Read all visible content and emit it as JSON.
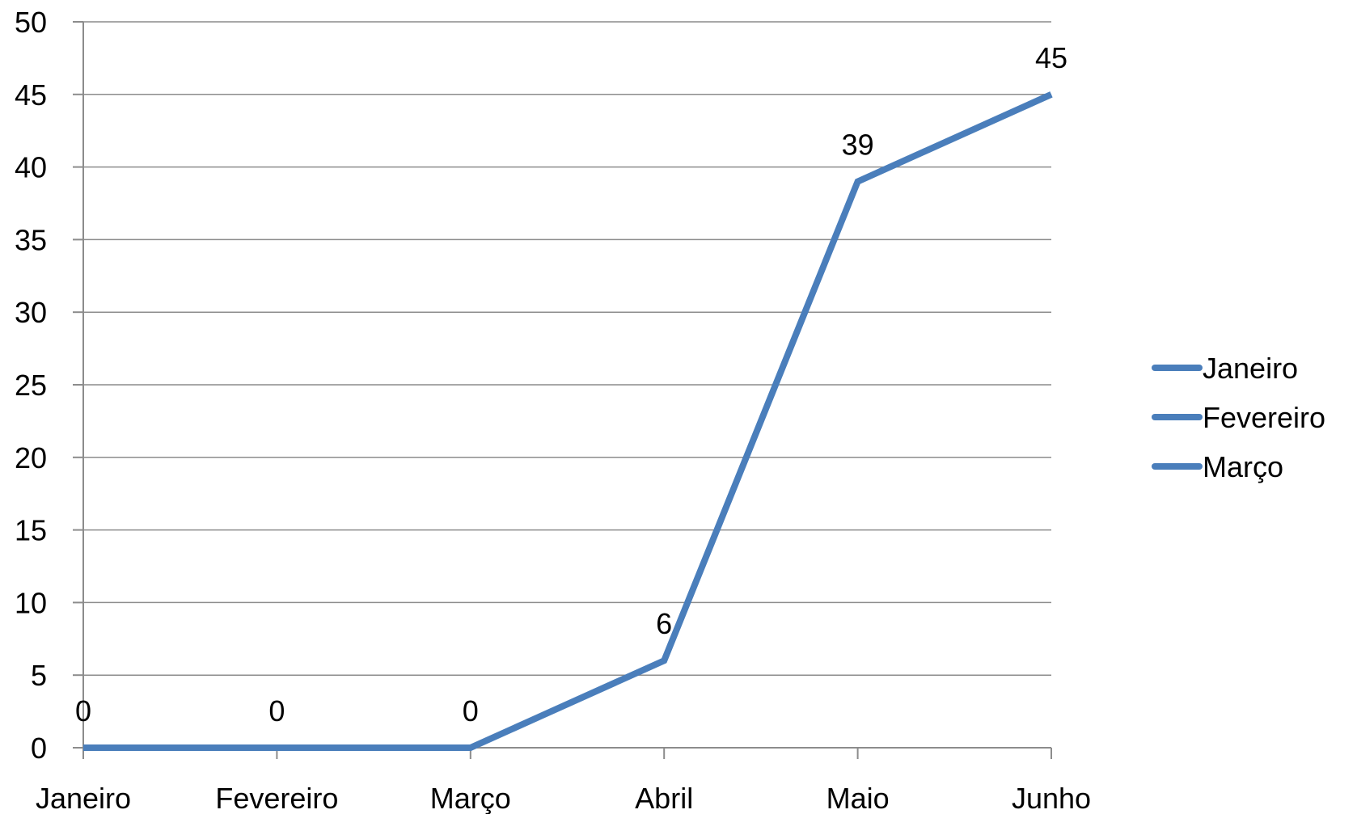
{
  "chart_data": {
    "type": "line",
    "categories": [
      "Janeiro",
      "Fevereiro",
      "Março",
      "Abril",
      "Maio",
      "Junho"
    ],
    "series": [
      {
        "values": [
          0,
          0,
          0,
          6,
          39,
          45
        ],
        "color": "#4a7ebb"
      }
    ],
    "data_labels": [
      "0",
      "0",
      "0",
      "6",
      "39",
      "45"
    ],
    "ylim": [
      0,
      50
    ],
    "ytick_step": 5,
    "grid": true,
    "legend": {
      "placement": "right",
      "entries": [
        "Janeiro",
        "Fevereiro",
        "Março"
      ],
      "color": "#4a7ebb"
    }
  }
}
